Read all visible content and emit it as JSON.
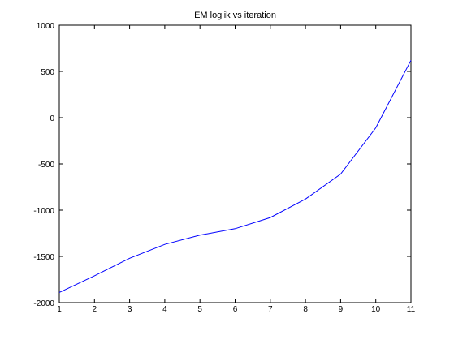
{
  "chart_data": {
    "type": "line",
    "title": "EM loglik vs iteration",
    "xlabel": "",
    "ylabel": "",
    "xlim": [
      1,
      11
    ],
    "ylim": [
      -2000,
      1000
    ],
    "xticks": [
      1,
      2,
      3,
      4,
      5,
      6,
      7,
      8,
      9,
      10,
      11
    ],
    "yticks": [
      -2000,
      -1500,
      -1000,
      -500,
      0,
      500,
      1000
    ],
    "grid": false,
    "legend": "none",
    "series": [
      {
        "color": "#0000ff",
        "x": [
          1,
          2,
          3,
          4,
          5,
          6,
          7,
          8,
          9,
          10,
          11
        ],
        "y": [
          -1890,
          -1710,
          -1520,
          -1370,
          -1270,
          -1200,
          -1080,
          -880,
          -610,
          -110,
          620
        ]
      }
    ]
  }
}
